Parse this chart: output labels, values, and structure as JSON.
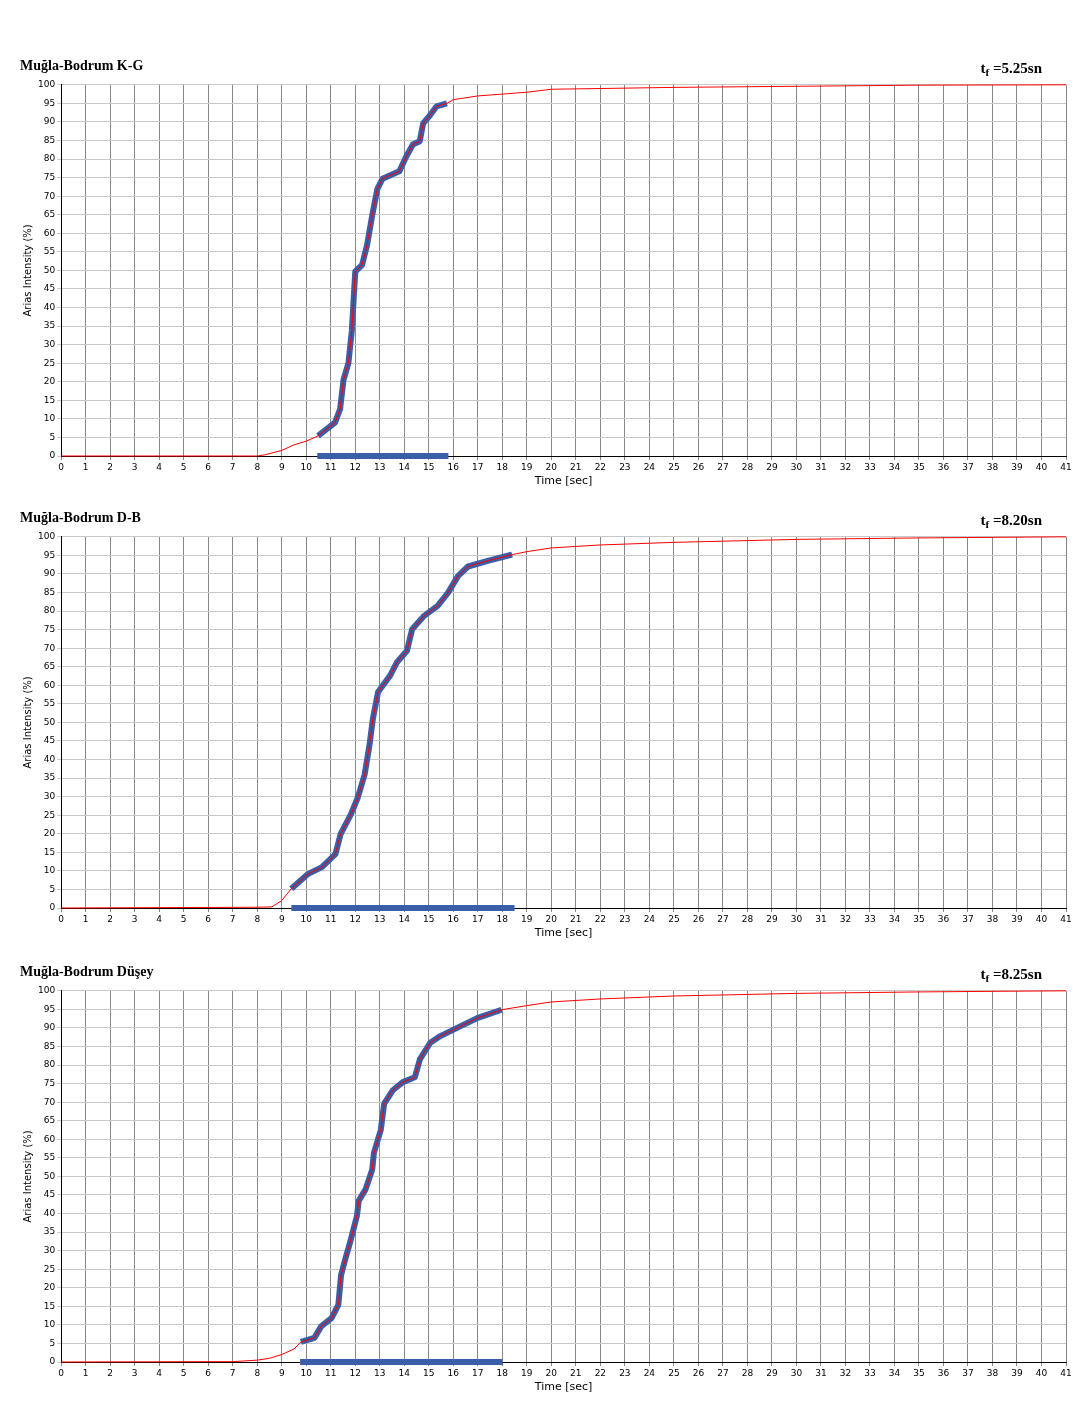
{
  "chart_data": [
    {
      "type": "line",
      "title": "Muğla-Bodrum K-G",
      "xlabel": "Time [sec]",
      "ylabel": "Arias Intensity (%)",
      "annotations": [
        "t$_{f}$ =5.25sn"
      ],
      "xlim": [
        0,
        41
      ],
      "xticks": [
        0,
        1,
        2,
        3,
        4,
        5,
        6,
        7,
        8,
        9,
        10,
        11,
        12,
        13,
        14,
        15,
        16,
        17,
        18,
        19,
        20,
        21,
        22,
        23,
        24,
        25,
        26,
        27,
        28,
        29,
        30,
        31,
        32,
        33,
        34,
        35,
        36,
        37,
        38,
        39,
        40,
        41
      ],
      "ylim": [
        0,
        100
      ],
      "yticks": [
        0,
        5,
        10,
        15,
        20,
        25,
        30,
        35,
        40,
        45,
        50,
        55,
        60,
        65,
        70,
        75,
        80,
        85,
        90,
        95,
        100
      ],
      "grid": true,
      "line_style": "solid",
      "series": [
        {
          "color": "#3b5ea8",
          "x": [
            10.45,
            15.8
          ],
          "values": [
            0,
            0
          ]
        },
        {
          "color": "#ff0000",
          "x": [
            0,
            8,
            8.3,
            9,
            9.5,
            10,
            10.48,
            11.17,
            11.38,
            11.52,
            11.72,
            11.86,
            11.93,
            12.0,
            12.28,
            12.48,
            12.69,
            12.9,
            13.11,
            13.8,
            14.08,
            14.35,
            14.63,
            14.77,
            15.05,
            15.32,
            15.74,
            16,
            17,
            18,
            19,
            20,
            25,
            30,
            35,
            41
          ],
          "values": [
            0,
            0,
            0.3,
            1.5,
            3,
            4,
            5.4,
            9,
            12.6,
            20.5,
            25,
            33.8,
            41.8,
            49.7,
            51.5,
            56.8,
            64.8,
            71.9,
            74.7,
            76.7,
            80.7,
            83.9,
            84.8,
            89.6,
            91.8,
            94.2,
            95,
            96,
            97,
            97.5,
            98,
            98.8,
            99.3,
            99.6,
            99.9,
            100
          ]
        },
        {
          "color": "#3b5ea8",
          "x": [
            10.48,
            11.17,
            11.38,
            11.52,
            11.72,
            11.86,
            11.93,
            12.0,
            12.28,
            12.48,
            12.69,
            12.9,
            13.11,
            13.8,
            14.08,
            14.35,
            14.63,
            14.77,
            15.05,
            15.32,
            15.74
          ],
          "values": [
            5.4,
            9,
            12.6,
            20.5,
            25,
            33.8,
            41.8,
            49.7,
            51.5,
            56.8,
            64.8,
            71.9,
            74.7,
            76.7,
            80.7,
            83.9,
            84.8,
            89.6,
            91.8,
            94.2,
            95
          ]
        }
      ]
    },
    {
      "type": "line",
      "title": "Muğla-Bodrum D-B",
      "xlabel": "Time [sec]",
      "ylabel": "Arias Intensity (%)",
      "annotations": [
        "t$_{f}$ =8.20sn"
      ],
      "xlim": [
        0,
        41
      ],
      "xticks": [
        0,
        1,
        2,
        3,
        4,
        5,
        6,
        7,
        8,
        9,
        10,
        11,
        12,
        13,
        14,
        15,
        16,
        17,
        18,
        19,
        20,
        21,
        22,
        23,
        24,
        25,
        26,
        27,
        28,
        29,
        30,
        31,
        32,
        33,
        34,
        35,
        36,
        37,
        38,
        39,
        40,
        41
      ],
      "ylim": [
        0,
        100
      ],
      "yticks": [
        0,
        5,
        10,
        15,
        20,
        25,
        30,
        35,
        40,
        45,
        50,
        55,
        60,
        65,
        70,
        75,
        80,
        85,
        90,
        95,
        100
      ],
      "grid": true,
      "line_style": "solid",
      "series": [
        {
          "color": "#3b5ea8",
          "x": [
            9.39,
            18.5
          ],
          "values": [
            0,
            0
          ]
        },
        {
          "color": "#ff0000",
          "x": [
            0,
            8,
            8.6,
            9,
            9.39,
            10.08,
            10.64,
            11.19,
            11.4,
            11.82,
            12.1,
            12.38,
            12.58,
            12.72,
            12.93,
            13.42,
            13.7,
            14.11,
            14.32,
            14.81,
            15.36,
            15.78,
            16.19,
            16.6,
            17.44,
            18.4,
            19,
            20,
            22,
            25,
            30,
            35,
            41
          ],
          "values": [
            0,
            0.2,
            0.3,
            2,
            5.2,
            9.2,
            11,
            14.5,
            19.9,
            25.2,
            29.7,
            35.9,
            43.9,
            51,
            58.2,
            62.6,
            66.2,
            69.3,
            75.1,
            78.7,
            81.4,
            84.9,
            89.4,
            92,
            93.6,
            95.2,
            96,
            97,
            97.8,
            98.5,
            99.3,
            99.7,
            100
          ]
        },
        {
          "color": "#3b5ea8",
          "x": [
            9.39,
            10.08,
            10.64,
            11.19,
            11.4,
            11.82,
            12.1,
            12.38,
            12.58,
            12.72,
            12.93,
            13.42,
            13.7,
            14.11,
            14.32,
            14.81,
            15.36,
            15.78,
            16.19,
            16.6,
            17.44,
            18.4
          ],
          "values": [
            5.2,
            9.2,
            11,
            14.5,
            19.9,
            25.2,
            29.7,
            35.9,
            43.9,
            51,
            58.2,
            62.6,
            66.2,
            69.3,
            75.1,
            78.7,
            81.4,
            84.9,
            89.4,
            92,
            93.6,
            95.2
          ]
        }
      ]
    },
    {
      "type": "line",
      "title": "Muğla-Bodrum Düşey",
      "xlabel": "Time [sec]",
      "ylabel": "Arias Intensity (%)",
      "annotations": [
        "t$_{f}$ =8.25sn"
      ],
      "xlim": [
        0,
        41
      ],
      "xticks": [
        0,
        1,
        2,
        3,
        4,
        5,
        6,
        7,
        8,
        9,
        10,
        11,
        12,
        13,
        14,
        15,
        16,
        17,
        18,
        19,
        20,
        21,
        22,
        23,
        24,
        25,
        26,
        27,
        28,
        29,
        30,
        31,
        32,
        33,
        34,
        35,
        36,
        37,
        38,
        39,
        40,
        41
      ],
      "ylim": [
        0,
        100
      ],
      "yticks": [
        0,
        5,
        10,
        15,
        20,
        25,
        30,
        35,
        40,
        45,
        50,
        55,
        60,
        65,
        70,
        75,
        80,
        85,
        90,
        95,
        100
      ],
      "grid": true,
      "line_style": "solid",
      "series": [
        {
          "color": "#3b5ea8",
          "x": [
            9.75,
            18.0
          ],
          "values": [
            0,
            0
          ]
        },
        {
          "color": "#ff0000",
          "x": [
            0,
            7,
            8,
            8.5,
            9,
            9.5,
            9.78,
            10.33,
            10.61,
            11.03,
            11.31,
            11.42,
            11.58,
            11.79,
            12.07,
            12.14,
            12.42,
            12.69,
            12.76,
            13.04,
            13.18,
            13.53,
            13.94,
            14.43,
            14.64,
            15.06,
            15.47,
            16.03,
            17.0,
            17.97,
            19,
            20,
            22,
            25,
            30,
            35,
            41
          ],
          "values": [
            0,
            0.1,
            0.5,
            1,
            2,
            3.5,
            5.4,
            6.5,
            9.6,
            11.8,
            15.4,
            23.4,
            27.4,
            32.3,
            39.4,
            43.4,
            46.5,
            51.8,
            56.3,
            62.5,
            69.6,
            73.2,
            75.4,
            76.7,
            81.6,
            86,
            87.8,
            89.6,
            92.7,
            94.9,
            96,
            97,
            97.8,
            98.6,
            99.3,
            99.7,
            100
          ]
        },
        {
          "color": "#3b5ea8",
          "x": [
            9.78,
            10.33,
            10.61,
            11.03,
            11.31,
            11.42,
            11.58,
            11.79,
            12.07,
            12.14,
            12.42,
            12.69,
            12.76,
            13.04,
            13.18,
            13.53,
            13.94,
            14.43,
            14.64,
            15.06,
            15.47,
            16.03,
            17.0,
            17.97
          ],
          "values": [
            5.4,
            6.5,
            9.6,
            11.8,
            15.4,
            23.4,
            27.4,
            32.3,
            39.4,
            43.4,
            46.5,
            51.8,
            56.3,
            62.5,
            69.6,
            73.2,
            75.4,
            76.7,
            81.6,
            86,
            87.8,
            89.6,
            92.7,
            94.9
          ]
        }
      ]
    }
  ]
}
